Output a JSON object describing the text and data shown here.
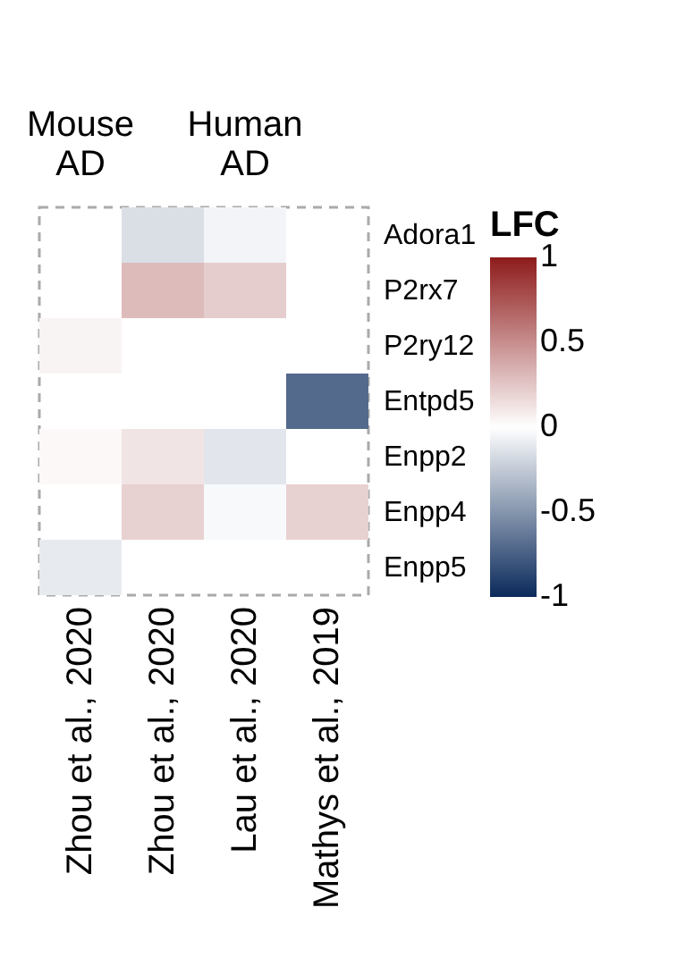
{
  "chart_data": {
    "type": "heatmap",
    "categories": [
      "Zhou et al., 2020",
      "Zhou et al., 2020",
      "Lau et al., 2020",
      "Mathys et al., 2019"
    ],
    "y_categories": [
      "Adora1",
      "P2rx7",
      "P2ry12",
      "Entpd5",
      "Enpp2",
      "Enpp4",
      "Enpp5"
    ],
    "cells": [
      [
        null,
        -0.15,
        -0.05,
        null
      ],
      [
        null,
        0.3,
        0.22,
        null
      ],
      [
        0.05,
        null,
        null,
        null
      ],
      [
        null,
        null,
        null,
        -0.7
      ],
      [
        0.03,
        0.12,
        -0.12,
        null
      ],
      [
        null,
        0.2,
        -0.03,
        0.2
      ],
      [
        -0.1,
        null,
        null,
        null
      ]
    ],
    "clim": [
      -1,
      1
    ],
    "cticks": [
      -1,
      -0.5,
      0,
      0.5,
      1
    ],
    "clabel": "LFC",
    "annotations": [
      "Mouse AD",
      "Human AD"
    ]
  }
}
